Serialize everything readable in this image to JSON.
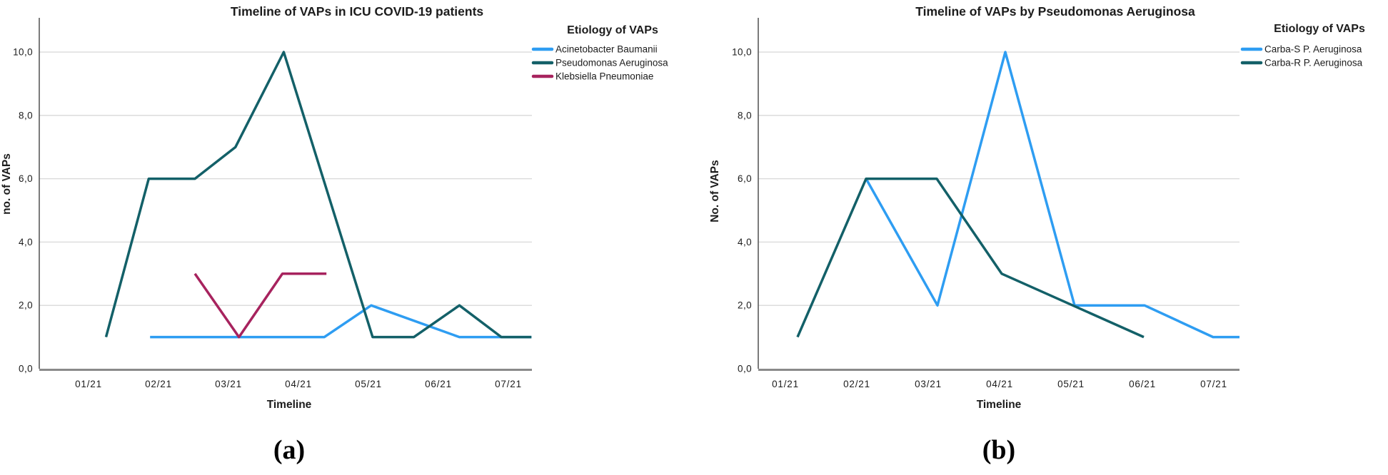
{
  "figure": {
    "background": "#ffffff",
    "label_a": "(a)",
    "label_b": "(b)"
  },
  "colors": {
    "grid": "#d8d8d8",
    "x_axis": "#8a8a8a",
    "y_axis": "#5a5a5a",
    "text": "#1c1c1c"
  },
  "chart_data": [
    {
      "type": "line",
      "title": "Timeline of VAPs in ICU COVID-19 patients",
      "xlabel": "Timeline",
      "ylabel": "no. of VAPs",
      "legend_title": "Etiology of VAPs",
      "legend_position": "right",
      "grid": true,
      "x_ticks": [
        "01/21",
        "02/21",
        "03/21",
        "04/21",
        "05/21",
        "06/21",
        "07/21"
      ],
      "y_ticks": [
        "0,0",
        "2,0",
        "4,0",
        "6,0",
        "8,0",
        "10,0"
      ],
      "ylim": [
        0,
        11
      ],
      "xlim_months": [
        0.3,
        7.35
      ],
      "sub_label": "(a)",
      "series": [
        {
          "name": "Acinetobacter Baumanii",
          "color": "#2e9df2",
          "points": [
            [
              1.88,
              1
            ],
            [
              4.37,
              1
            ],
            [
              5.04,
              2
            ],
            [
              6.3,
              1
            ],
            [
              7.33,
              1
            ]
          ]
        },
        {
          "name": "Pseudomonas Aeruginosa",
          "color": "#136068",
          "points": [
            [
              1.25,
              1
            ],
            [
              1.86,
              6
            ],
            [
              2.52,
              6
            ],
            [
              3.1,
              7
            ],
            [
              3.79,
              10
            ],
            [
              5.06,
              1
            ],
            [
              5.65,
              1
            ],
            [
              6.3,
              2
            ],
            [
              6.9,
              1
            ],
            [
              7.33,
              1
            ]
          ]
        },
        {
          "name": "Klebsiella Pneumoniae",
          "color": "#a7235e",
          "points": [
            [
              2.52,
              3
            ],
            [
              3.15,
              1
            ],
            [
              3.77,
              3
            ],
            [
              4.4,
              3
            ]
          ]
        }
      ]
    },
    {
      "type": "line",
      "title": "Timeline of VAPs by Pseudomonas Aeruginosa",
      "xlabel": "Timeline",
      "ylabel": "No. of VAPs",
      "legend_title": "Etiology of VAPs",
      "legend_position": "right",
      "grid": true,
      "x_ticks": [
        "01/21",
        "02/21",
        "03/21",
        "04/21",
        "05/21",
        "06/21",
        "07/21"
      ],
      "y_ticks": [
        "0,0",
        "2,0",
        "4,0",
        "6,0",
        "8,0",
        "10,0"
      ],
      "ylim": [
        0,
        11
      ],
      "xlim_months": [
        0.62,
        7.36
      ],
      "sub_label": "(b)",
      "series": [
        {
          "name": "Carba-S P. Aeruginosa",
          "color": "#2e9df2",
          "points": [
            [
              2.13,
              6
            ],
            [
              3.13,
              2
            ],
            [
              4.08,
              10
            ],
            [
              5.05,
              2
            ],
            [
              6.03,
              2
            ],
            [
              6.99,
              1
            ],
            [
              7.36,
              1
            ]
          ]
        },
        {
          "name": "Carba-R P. Aeruginosa",
          "color": "#136068",
          "points": [
            [
              1.17,
              1
            ],
            [
              2.13,
              6
            ],
            [
              3.12,
              6
            ],
            [
              4.03,
              3
            ],
            [
              6.02,
              1
            ]
          ]
        }
      ]
    }
  ]
}
